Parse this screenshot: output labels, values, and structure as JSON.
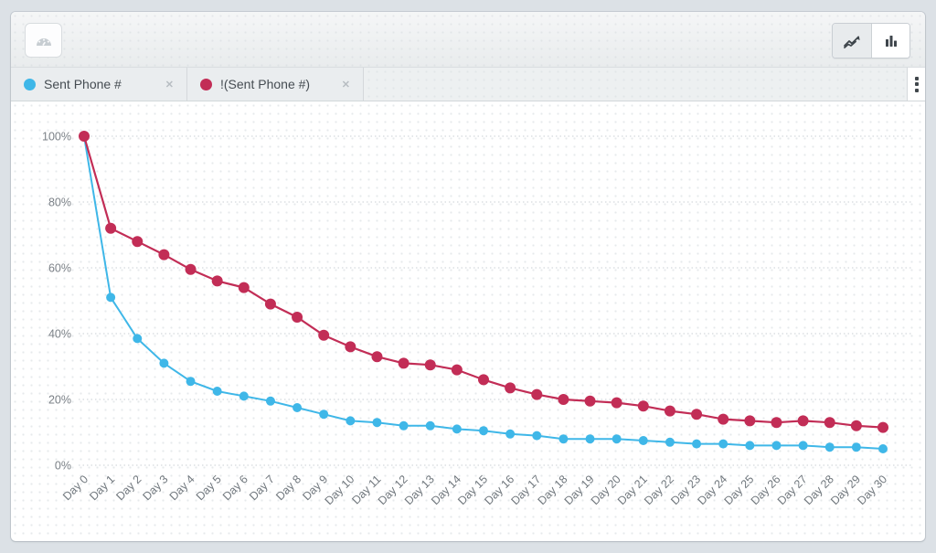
{
  "toolbar": {
    "gauge_button_icon": "gauge-icon",
    "view_toggle": {
      "line_view_icon": "line-chart-icon",
      "bar_view_icon": "bar-chart-icon",
      "selected_view": "line"
    }
  },
  "tab_bar": {
    "tabs": [
      {
        "label": "Sent Phone #",
        "color": "#3fb7e8",
        "close_icon": "✕"
      },
      {
        "label": "!(Sent Phone #)",
        "color": "#c22d56",
        "close_icon": "✕"
      }
    ],
    "menu_icon": "kebab-menu-icon"
  },
  "chart_data": {
    "type": "line",
    "title": "",
    "xlabel": "",
    "ylabel": "",
    "categories": [
      "Day 0",
      "Day 1",
      "Day 2",
      "Day 3",
      "Day 4",
      "Day 5",
      "Day 6",
      "Day 7",
      "Day 8",
      "Day 9",
      "Day 10",
      "Day 11",
      "Day 12",
      "Day 13",
      "Day 14",
      "Day 15",
      "Day 16",
      "Day 17",
      "Day 18",
      "Day 19",
      "Day 20",
      "Day 21",
      "Day 22",
      "Day 23",
      "Day 24",
      "Day 25",
      "Day 26",
      "Day 27",
      "Day 28",
      "Day 29",
      "Day 30"
    ],
    "series": [
      {
        "name": "Sent Phone #",
        "color": "#3fb7e8",
        "values": [
          100,
          51,
          38.5,
          31,
          25.5,
          22.5,
          21,
          19.5,
          17.5,
          15.5,
          13.5,
          13,
          12,
          12,
          11,
          10.5,
          9.5,
          9,
          8,
          8,
          8,
          7.5,
          7,
          6.5,
          6.5,
          6,
          6,
          6,
          5.5,
          5.5,
          5
        ]
      },
      {
        "name": "!(Sent Phone #)",
        "color": "#c22d56",
        "values": [
          100,
          72,
          68,
          64,
          59.5,
          56,
          54,
          49,
          45,
          39.5,
          36,
          33,
          31,
          30.5,
          29,
          26,
          23.5,
          21.5,
          20,
          19.5,
          19,
          18,
          16.5,
          15.5,
          14,
          13.5,
          13,
          13.5,
          13,
          12,
          11.5
        ]
      }
    ],
    "yticks": [
      0,
      20,
      40,
      60,
      80,
      100
    ],
    "ytick_suffix": "%",
    "ylim": [
      0,
      100
    ],
    "grid": "horizontal-dotted",
    "legend_position": "tabs-above"
  }
}
